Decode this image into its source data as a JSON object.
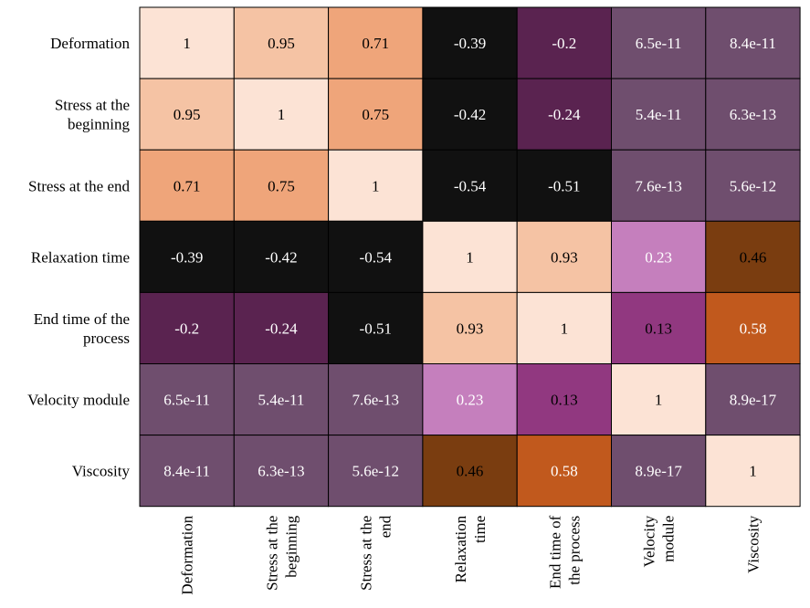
{
  "chart_data": {
    "type": "heatmap",
    "title": "",
    "xlabel": "",
    "ylabel": "",
    "rows": [
      [
        "Deformation"
      ],
      [
        "Stress at the",
        "beginning"
      ],
      [
        "Stress at the end"
      ],
      [
        "Relaxation time"
      ],
      [
        "End time of the",
        "process"
      ],
      [
        "Velocity module"
      ],
      [
        "Viscosity"
      ]
    ],
    "columns": [
      [
        "Deformation"
      ],
      [
        "Stress at the",
        "beginning"
      ],
      [
        "Stress at the",
        "end"
      ],
      [
        "Relaxation",
        "time"
      ],
      [
        "End time of",
        "the process"
      ],
      [
        "Velocity",
        "module"
      ],
      [
        "Viscosity"
      ]
    ],
    "labels": [
      [
        "1",
        "0.95",
        "0.71",
        "-0.39",
        "-0.2",
        "6.5e-11",
        "8.4e-11"
      ],
      [
        "0.95",
        "1",
        "0.75",
        "-0.42",
        "-0.24",
        "5.4e-11",
        "6.3e-13"
      ],
      [
        "0.71",
        "0.75",
        "1",
        "-0.54",
        "-0.51",
        "7.6e-13",
        "5.6e-12"
      ],
      [
        "-0.39",
        "-0.42",
        "-0.54",
        "1",
        "0.93",
        "0.23",
        "0.46"
      ],
      [
        "-0.2",
        "-0.24",
        "-0.51",
        "0.93",
        "1",
        "0.13",
        "0.58"
      ],
      [
        "6.5e-11",
        "5.4e-11",
        "7.6e-13",
        "0.23",
        "0.13",
        "1",
        "8.9e-17"
      ],
      [
        "8.4e-11",
        "6.3e-13",
        "5.6e-12",
        "0.46",
        "0.58",
        "8.9e-17",
        "1"
      ]
    ],
    "colors": [
      [
        "#fce3d5",
        "#f5c3a4",
        "#efa57a",
        "#111111",
        "#5a2350",
        "#6f4e6e",
        "#6f4e6e"
      ],
      [
        "#f5c3a4",
        "#fce3d5",
        "#efa57a",
        "#111111",
        "#5a2350",
        "#6f4e6e",
        "#6f4e6e"
      ],
      [
        "#efa57a",
        "#efa57a",
        "#fce3d5",
        "#111111",
        "#111111",
        "#6f4e6e",
        "#6f4e6e"
      ],
      [
        "#111111",
        "#111111",
        "#111111",
        "#fce3d5",
        "#f5c3a4",
        "#c57fbd",
        "#7a3d10"
      ],
      [
        "#5a2350",
        "#5a2350",
        "#111111",
        "#f5c3a4",
        "#fce3d5",
        "#913880",
        "#c1591d"
      ],
      [
        "#6f4e6e",
        "#6f4e6e",
        "#6f4e6e",
        "#c57fbd",
        "#913880",
        "#fce3d5",
        "#6f4e6e"
      ],
      [
        "#6f4e6e",
        "#6f4e6e",
        "#6f4e6e",
        "#7a3d10",
        "#c1591d",
        "#6f4e6e",
        "#fce3d5"
      ]
    ],
    "dark_text_colors": [
      "#fce3d5",
      "#f5c3a4",
      "#efa57a",
      "#7a3d10",
      "#913880"
    ],
    "legend": "none",
    "grid": true
  }
}
